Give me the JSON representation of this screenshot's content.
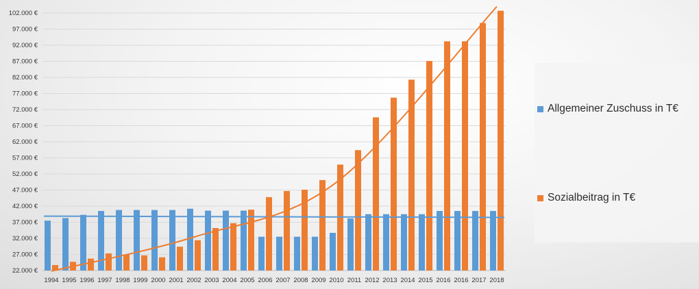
{
  "colors": {
    "series_a": "#5b9bd5",
    "series_b": "#ed7d31",
    "grid": "#d9d9d9",
    "text": "#333333"
  },
  "legend": {
    "items": [
      {
        "label": "Allgemeiner Zuschuss in T€",
        "color": "#5b9bd5"
      },
      {
        "label": "Sozialbeitrag in T€",
        "color": "#ed7d31"
      }
    ]
  },
  "chart_data": {
    "type": "bar",
    "categories": [
      "1994",
      "1995",
      "1996",
      "1997",
      "1998",
      "1999",
      "2000",
      "2001",
      "2002",
      "2003",
      "2004",
      "2005",
      "2006",
      "2007",
      "2008",
      "2009",
      "2010",
      "2011",
      "2012",
      "2013",
      "2014",
      "2015",
      "2016",
      "2016",
      "2017",
      "2018"
    ],
    "y_ticks": [
      "22.000 €",
      "27.000 €",
      "32.000 €",
      "37.000 €",
      "42.000 €",
      "47.000 €",
      "52.000 €",
      "57.000 €",
      "62.000 €",
      "67.000 €",
      "72.000 €",
      "77.000 €",
      "82.000 €",
      "87.000 €",
      "92.000 €",
      "97.000 €",
      "102.000 €"
    ],
    "ylim": [
      22000,
      102000
    ],
    "series": [
      {
        "name": "Allgemeiner Zuschuss in T€",
        "color": "#5b9bd5",
        "values": [
          37500,
          38300,
          39300,
          40500,
          40800,
          40800,
          40800,
          40800,
          41200,
          40600,
          40600,
          40600,
          32500,
          32500,
          32500,
          32500,
          33700,
          38200,
          39500,
          39500,
          39500,
          39500,
          40500,
          40500,
          40500,
          40500
        ]
      },
      {
        "name": "Sozialbeitrag in T€",
        "color": "#ed7d31",
        "values": [
          23700,
          24700,
          25700,
          27300,
          26900,
          26700,
          26100,
          29400,
          31400,
          35200,
          36700,
          40900,
          44800,
          46700,
          47100,
          50100,
          54900,
          59400,
          69600,
          75700,
          81300,
          87100,
          93200,
          93200,
          98900,
          102700
        ]
      }
    ],
    "trendlines": [
      {
        "series": "Allgemeiner Zuschuss in T€",
        "kind": "linear",
        "from": 38900,
        "to": 38500
      },
      {
        "series": "Sozialbeitrag in T€",
        "kind": "polynomial",
        "points": [
          [
            1,
            21800
          ],
          [
            9,
            32400
          ],
          [
            17,
            49400
          ],
          [
            26,
            104000
          ]
        ]
      }
    ]
  }
}
